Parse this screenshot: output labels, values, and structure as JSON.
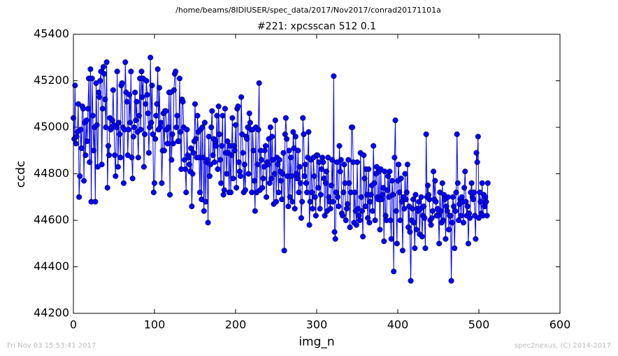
{
  "chart_data": {
    "type": "line",
    "suptitle": "/home/beams/8IDIUSER/spec_data/2017/Nov2017/conrad20171101a",
    "title": "#221: xpcsscan 512 0.1",
    "xlabel": "img_n",
    "ylabel": "ccdc",
    "footer_left": "Fri Nov 03 15:53:41 2017",
    "footer_right": "spec2nexus, (C) 2014-2017",
    "xlim": [
      0,
      600
    ],
    "xticks": [
      0,
      100,
      200,
      300,
      400,
      500,
      600
    ],
    "ylim": [
      44200,
      45400
    ],
    "yticks": [
      44200,
      44400,
      44600,
      44800,
      45000,
      45200,
      45400
    ],
    "series": [
      {
        "color": "#0000ff",
        "values": [
          45040,
          44950,
          45180,
          44930,
          44960,
          44980,
          45100,
          44700,
          44790,
          44990,
          44910,
          45090,
          45080,
          44770,
          45020,
          44880,
          45030,
          44940,
          45080,
          45210,
          44850,
          45250,
          44680,
          45210,
          45050,
          44900,
          45000,
          44680,
          45190,
          45010,
          44830,
          45150,
          45130,
          45200,
          45240,
          44840,
          45080,
          45260,
          45230,
          45120,
          45000,
          45280,
          44740,
          44920,
          44880,
          45040,
          44990,
          45000,
          45030,
          45160,
          45010,
          44880,
          44790,
          45000,
          45240,
          44830,
          45020,
          44970,
          44870,
          45180,
          45190,
          45000,
          44760,
          44990,
          45280,
          45150,
          45110,
          44880,
          44990,
          45140,
          45020,
          45240,
          44870,
          44780,
          44960,
          45000,
          45150,
          45030,
          45110,
          44980,
          44870,
          45050,
          45210,
          44990,
          45240,
          45130,
          45210,
          44830,
          44970,
          45100,
          45200,
          45140,
          45060,
          44890,
          45000,
          45300,
          45020,
          45180,
          44970,
          44720,
          44760,
          44950,
          45050,
          45100,
          45250,
          44990,
          45170,
          45000,
          45020,
          44760,
          44900,
          45060,
          44900,
          45070,
          45070,
          44990,
          44930,
          45000,
          45150,
          44710,
          45150,
          44860,
          44970,
          44930,
          45160,
          45230,
          45240,
          45000,
          45050,
          44940,
          44940,
          45210,
          44980,
          44820,
          45120,
          45110,
          45000,
          44860,
          44820,
          44720,
          44990,
          44880,
          44870,
          44840,
          44810,
          44910,
          44660,
          44800,
          44890,
          44940,
          45100,
          44950,
          44870,
          45050,
          44980,
          44870,
          44720,
          44990,
          44690,
          45000,
          44870,
          44640,
          45020,
          44680,
          44850,
          44860,
          44590,
          44960,
          44790,
          44840,
          45000,
          45070,
          44880,
          44950,
          44850,
          44940,
          44920,
          45050,
          44820,
          45090,
          44970,
          44860,
          44760,
          44920,
          45050,
          44710,
          44730,
          45080,
          44890,
          44800,
          44940,
          44890,
          44720,
          44920,
          44720,
          44880,
          45040,
          44780,
          44920,
          44900,
          45010,
          44740,
          45080,
          45090,
          44850,
          44810,
          44790,
          45130,
          44970,
          44890,
          44720,
          44840,
          44730,
          44960,
          44950,
          45000,
          44800,
          45060,
          45020,
          44990,
          44720,
          44990,
          44900,
          44770,
          44640,
          45000,
          44720,
          44840,
          44990,
          45190,
          44730,
          44900,
          44860,
          44740,
          44780,
          44830,
          44900,
          44920,
          44700,
          44850,
          44840,
          44950,
          44760,
          45000,
          44780,
          44960,
          44860,
          44670,
          44800,
          45030,
          44680,
          44870,
          44840,
          44720,
          44860,
          44810,
          44770,
          44690,
          44800,
          44890,
          44470,
          44970,
          45040,
          44950,
          44790,
          44660,
          44900,
          44700,
          44870,
          44790,
          44680,
          44980,
          44910,
          44650,
          44960,
          44800,
          44780,
          44900,
          44720,
          44830,
          44760,
          44610,
          44680,
          45040,
          44970,
          44790,
          44840,
          44760,
          44720,
          44870,
          44980,
          44580,
          44680,
          44860,
          44720,
          44650,
          44870,
          44790,
          44700,
          44620,
          44880,
          44880,
          44740,
          44850,
          44650,
          44710,
          44820,
          44870,
          44850,
          44780,
          44620,
          44760,
          44810,
          44640,
          44870,
          44700,
          44680,
          44650,
          44750,
          44860,
          44680,
          45220,
          44550,
          44520,
          44720,
          44850,
          44700,
          44660,
          44920,
          44810,
          44860,
          44630,
          44620,
          44720,
          44840,
          44760,
          44600,
          44650,
          44670,
          44860,
          44760,
          44570,
          44720,
          45000,
          45000,
          44850,
          44590,
          44720,
          44640,
          44580,
          44850,
          44650,
          44620,
          44600,
          44890,
          44700,
          44640,
          44530,
          44880,
          44780,
          44660,
          44820,
          44710,
          44610,
          44820,
          44590,
          44680,
          44710,
          44750,
          44640,
          44920,
          44760,
          44600,
          44800,
          44830,
          44700,
          44690,
          44810,
          44560,
          44820,
          44690,
          44710,
          44740,
          44510,
          44810,
          44620,
          44600,
          44730,
          44790,
          44700,
          44810,
          44600,
          44520,
          44770,
          44710,
          44380,
          44870,
          45030,
          44640,
          44500,
          44770,
          44840,
          44720,
          44600,
          44780,
          44680,
          44470,
          44700,
          44650,
          44800,
          44690,
          44720,
          44840,
          44570,
          44660,
          44550,
          44340,
          44600,
          44650,
          44690,
          44590,
          44480,
          44710,
          44560,
          44650,
          44640,
          44680,
          44540,
          44650,
          44700,
          44530,
          44620,
          44660,
          44610,
          44480,
          44970,
          44700,
          44750,
          44710,
          44690,
          44600,
          44580,
          44610,
          44640,
          44810,
          44690,
          44770,
          44680,
          44620,
          44650,
          44620,
          44500,
          44720,
          44640,
          44590,
          44760,
          44600,
          44710,
          44690,
          44520,
          44660,
          44640,
          44700,
          44560,
          44620,
          44620,
          44340,
          44590,
          44700,
          44660,
          44480,
          44640,
          44720,
          44970,
          44760,
          44600,
          44670,
          44690,
          44620,
          44700,
          44680,
          44590,
          44740,
          44810,
          44680,
          44620,
          44660,
          44500,
          44630,
          44610,
          44720,
          44760,
          44700,
          44690,
          44720,
          44620,
          44520,
          44890,
          44850,
          44960,
          44610,
          44720,
          44680,
          44630,
          44760,
          44620,
          44710,
          44660,
          44700,
          44680,
          44620,
          44760
        ]
      }
    ]
  }
}
